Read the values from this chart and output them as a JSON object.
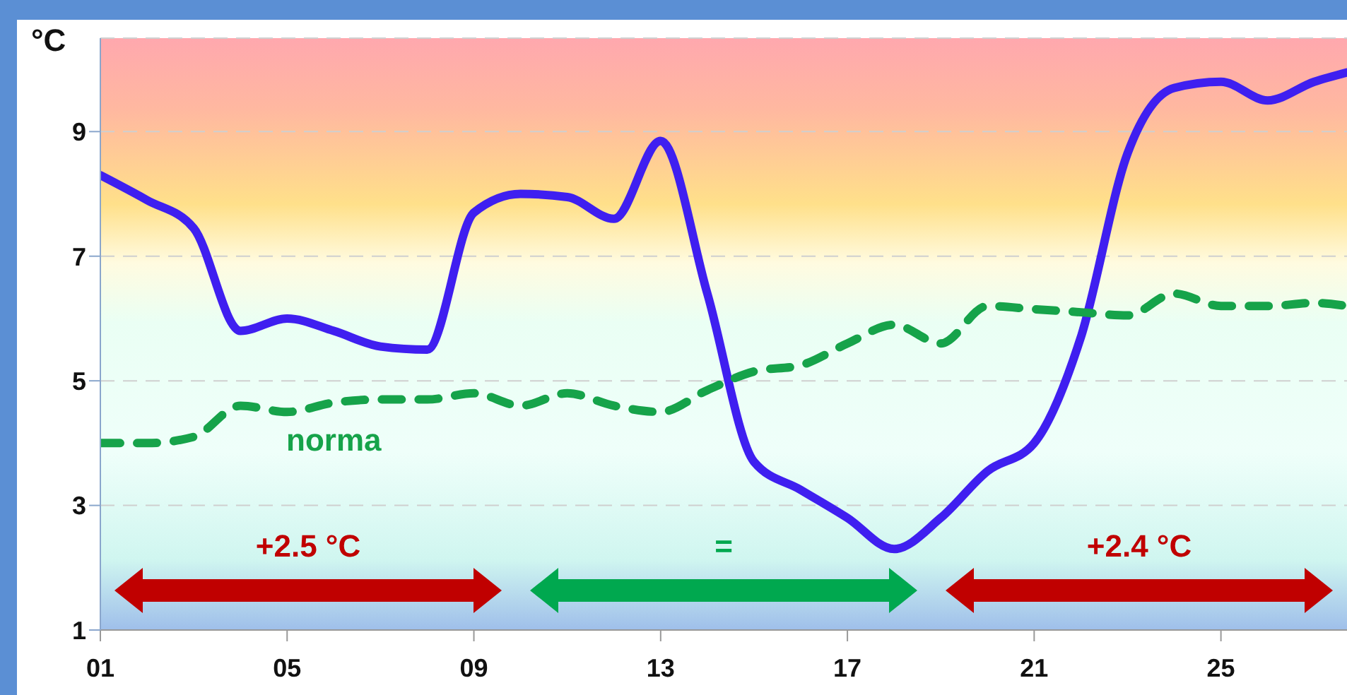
{
  "chart_data": {
    "type": "line",
    "ylabel": "°C",
    "x": [
      1,
      2,
      3,
      4,
      5,
      6,
      7,
      8,
      9,
      10,
      11,
      12,
      13,
      14,
      15,
      16,
      17,
      18,
      19,
      20,
      21,
      22,
      23,
      24,
      25,
      26,
      27,
      27.7
    ],
    "series": [
      {
        "color": "#3f1ff0",
        "line_style": "solid",
        "values": [
          8.3,
          7.9,
          7.45,
          5.8,
          6.0,
          5.8,
          5.55,
          5.5,
          7.7,
          8.0,
          7.95,
          7.6,
          8.85,
          6.4,
          3.7,
          3.25,
          2.8,
          2.3,
          2.8,
          3.55,
          4.0,
          5.7,
          8.65,
          9.7,
          9.8,
          9.5,
          9.8,
          9.95
        ]
      },
      {
        "name": "norma",
        "color": "#16a34a",
        "line_style": "dashed",
        "values": [
          4.0,
          4.0,
          4.1,
          4.6,
          4.5,
          4.65,
          4.7,
          4.7,
          4.8,
          4.6,
          4.8,
          4.6,
          4.5,
          4.85,
          5.15,
          5.25,
          5.6,
          5.9,
          5.6,
          6.2,
          6.15,
          6.1,
          6.05,
          6.4,
          6.2,
          6.2,
          6.25,
          6.2
        ]
      }
    ],
    "xlim": [
      1,
      27.7
    ],
    "xticks": [
      {
        "value": 1,
        "label": "01"
      },
      {
        "value": 5,
        "label": "05"
      },
      {
        "value": 9,
        "label": "09"
      },
      {
        "value": 13,
        "label": "13"
      },
      {
        "value": 17,
        "label": "17"
      },
      {
        "value": 21,
        "label": "21"
      },
      {
        "value": 25,
        "label": "25"
      }
    ],
    "ylim": [
      1,
      10.5
    ],
    "yticks": [
      1,
      3,
      5,
      7,
      9
    ],
    "grid": "y",
    "marker": "none",
    "annotations": [
      "+2.5 °C",
      "=",
      "+2.4 °C"
    ]
  }
}
